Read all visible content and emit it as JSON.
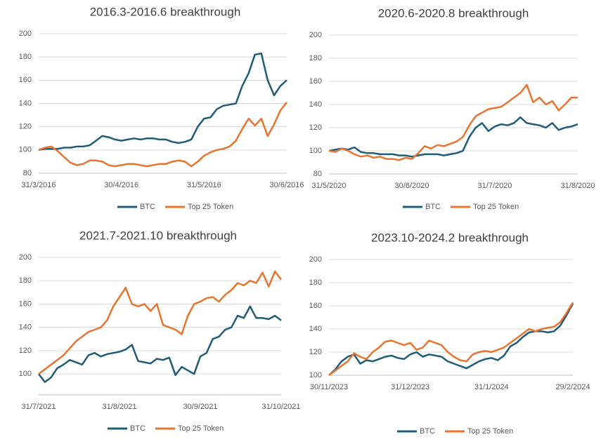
{
  "chart_data": [
    {
      "type": "line",
      "title": "2016.3-2016.6 breakthrough",
      "categories": [
        "31/3/2016",
        null,
        null,
        null,
        null,
        null,
        null,
        null,
        null,
        null,
        null,
        null,
        null,
        "30/4/2016",
        null,
        null,
        null,
        null,
        null,
        null,
        null,
        null,
        null,
        null,
        null,
        null,
        "31/5/2016",
        null,
        null,
        null,
        null,
        null,
        null,
        null,
        null,
        null,
        null,
        null,
        null,
        "30/6/2016"
      ],
      "series": [
        {
          "name": "BTC",
          "color": "#1f5c7a",
          "values": [
            100,
            101,
            101,
            101,
            102,
            102,
            103,
            103,
            104,
            108,
            112,
            111,
            109,
            108,
            109,
            110,
            109,
            110,
            110,
            109,
            109,
            107,
            106,
            107,
            109,
            120,
            127,
            128,
            135,
            138,
            139,
            140,
            155,
            166,
            182,
            183,
            160,
            147,
            155,
            160
          ]
        },
        {
          "name": "Top 25 Token",
          "color": "#e8742f",
          "values": [
            100,
            102,
            103,
            99,
            94,
            89,
            87,
            88,
            91,
            91,
            90,
            87,
            86,
            87,
            88,
            88,
            87,
            86,
            87,
            88,
            88,
            90,
            91,
            90,
            86,
            90,
            95,
            98,
            100,
            101,
            103,
            108,
            118,
            127,
            121,
            127,
            112,
            122,
            134,
            141
          ]
        }
      ],
      "ylim": [
        80,
        200
      ],
      "yticks": [
        80,
        100,
        120,
        140,
        160,
        180,
        200
      ],
      "grid": true
    },
    {
      "type": "line",
      "title": "2020.6-2020.8 breakthrough",
      "categories": [
        "31/5/2020",
        null,
        null,
        null,
        null,
        null,
        null,
        null,
        null,
        null,
        null,
        null,
        null,
        "30/6/2020",
        null,
        null,
        null,
        null,
        null,
        null,
        null,
        null,
        null,
        null,
        null,
        null,
        "31/7/2020",
        null,
        null,
        null,
        null,
        null,
        null,
        null,
        null,
        null,
        null,
        null,
        null,
        "31/8/2020"
      ],
      "series": [
        {
          "name": "BTC",
          "color": "#1f5c7a",
          "values": [
            100,
            101,
            102,
            101,
            103,
            99,
            98,
            98,
            97,
            97,
            97,
            96,
            96,
            95,
            96,
            97,
            97,
            97,
            96,
            97,
            98,
            100,
            112,
            120,
            124,
            117,
            121,
            123,
            122,
            124,
            129,
            124,
            123,
            122,
            120,
            124,
            118,
            120,
            121,
            123
          ]
        },
        {
          "name": "Top 25 Token",
          "color": "#e8742f",
          "values": [
            100,
            99,
            102,
            100,
            97,
            95,
            96,
            94,
            95,
            93,
            93,
            92,
            94,
            93,
            98,
            104,
            102,
            105,
            104,
            106,
            108,
            112,
            122,
            130,
            133,
            136,
            137,
            138,
            142,
            146,
            150,
            157,
            142,
            146,
            140,
            143,
            135,
            140,
            146,
            146
          ]
        }
      ],
      "ylim": [
        80,
        200
      ],
      "yticks": [
        80,
        100,
        120,
        140,
        160,
        180,
        200
      ],
      "grid": true
    },
    {
      "type": "line",
      "title": "2021.7-2021.10 breakthrough",
      "categories": [
        "31/7/2021",
        null,
        null,
        null,
        null,
        null,
        null,
        null,
        null,
        null,
        null,
        null,
        null,
        "31/8/2021",
        null,
        null,
        null,
        null,
        null,
        null,
        null,
        null,
        null,
        null,
        null,
        null,
        "30/9/2021",
        null,
        null,
        null,
        null,
        null,
        null,
        null,
        null,
        null,
        null,
        null,
        null,
        "31/10/2021"
      ],
      "series": [
        {
          "name": "BTC",
          "color": "#1f5c7a",
          "values": [
            100,
            93,
            97,
            105,
            108,
            112,
            110,
            108,
            116,
            118,
            115,
            117,
            118,
            119,
            121,
            125,
            111,
            110,
            109,
            113,
            112,
            114,
            99,
            106,
            103,
            100,
            115,
            118,
            130,
            132,
            138,
            140,
            150,
            148,
            158,
            148,
            148,
            147,
            150,
            146
          ]
        },
        {
          "name": "Top 25 Token",
          "color": "#e8742f",
          "values": [
            100,
            104,
            108,
            112,
            116,
            122,
            128,
            132,
            136,
            138,
            140,
            146,
            158,
            166,
            174,
            160,
            158,
            160,
            154,
            160,
            142,
            140,
            138,
            134,
            150,
            160,
            162,
            165,
            166,
            162,
            168,
            172,
            178,
            176,
            180,
            178,
            187,
            175,
            188,
            181
          ]
        }
      ],
      "ylim": [
        82,
        200
      ],
      "yticks": [
        100,
        120,
        140,
        160,
        180,
        200
      ],
      "grid": true
    },
    {
      "type": "line",
      "title": "2023.10-2024.2 breakthrough",
      "categories": [
        "30/11/2023",
        null,
        null,
        null,
        null,
        null,
        null,
        null,
        null,
        null,
        null,
        null,
        null,
        "31/12/2023",
        null,
        null,
        null,
        null,
        null,
        null,
        null,
        null,
        null,
        null,
        null,
        null,
        "31/1/2024",
        null,
        null,
        null,
        null,
        null,
        null,
        null,
        null,
        null,
        null,
        null,
        null,
        "29/2/2024"
      ],
      "series": [
        {
          "name": "BTC",
          "color": "#1f5c7a",
          "values": [
            100,
            105,
            112,
            116,
            118,
            110,
            113,
            112,
            114,
            116,
            117,
            115,
            114,
            118,
            120,
            116,
            118,
            117,
            116,
            112,
            110,
            108,
            106,
            109,
            112,
            114,
            115,
            113,
            117,
            125,
            128,
            133,
            137,
            138,
            138,
            137,
            138,
            143,
            152,
            162
          ]
        },
        {
          "name": "Top 25 Token",
          "color": "#e8742f",
          "values": [
            100,
            104,
            108,
            112,
            119,
            116,
            114,
            120,
            124,
            129,
            130,
            128,
            126,
            128,
            122,
            124,
            130,
            128,
            126,
            120,
            116,
            113,
            112,
            118,
            120,
            121,
            120,
            122,
            124,
            128,
            132,
            136,
            140,
            138,
            140,
            141,
            142,
            146,
            154,
            163
          ]
        }
      ],
      "ylim": [
        100,
        200
      ],
      "yticks": [
        100,
        120,
        140,
        160,
        180,
        200
      ],
      "grid": true
    }
  ]
}
